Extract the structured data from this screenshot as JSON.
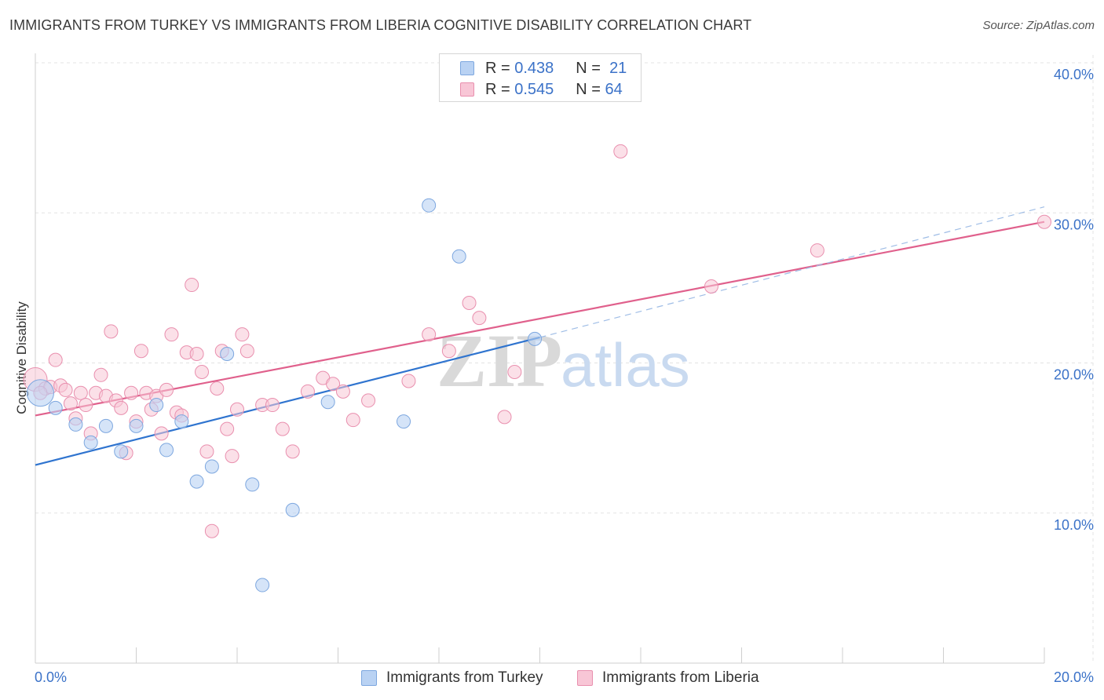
{
  "title": "IMMIGRANTS FROM TURKEY VS IMMIGRANTS FROM LIBERIA COGNITIVE DISABILITY CORRELATION CHART",
  "source": "Source: ZipAtlas.com",
  "watermark": {
    "zip": "ZIP",
    "atlas": "atlas"
  },
  "legend": {
    "rows": [
      {
        "r_label": "R =",
        "r_value": "0.438",
        "n_label": "N =",
        "n_value": "21"
      },
      {
        "r_label": "R =",
        "r_value": "0.545",
        "n_label": "N =",
        "n_value": "64"
      }
    ]
  },
  "bottom_legend": {
    "turkey": "Immigrants from Turkey",
    "liberia": "Immigrants from Liberia"
  },
  "colors": {
    "turkey_fill": "#b9d2f3",
    "turkey_stroke": "#7da7df",
    "turkey_line": "#2f74cf",
    "liberia_fill": "#f8c6d6",
    "liberia_stroke": "#e98fae",
    "liberia_line": "#e0608c",
    "tick_label": "#3b72c8",
    "grid": "#e3e3e3"
  },
  "chart_data": {
    "type": "scatter",
    "ylabel": "Cognitive Disability",
    "xlabel": "",
    "xlim": [
      0,
      20
    ],
    "ylim": [
      0,
      40
    ],
    "x_tick_labels": [
      "0.0%",
      "20.0%"
    ],
    "y_ticks": [
      10,
      20,
      30,
      40
    ],
    "y_tick_labels": [
      "10.0%",
      "20.0%",
      "30.0%",
      "40.0%"
    ],
    "grid": true,
    "legend_position": "top-center",
    "series": [
      {
        "name": "Immigrants from Turkey",
        "points": [
          [
            0.1,
            18.0
          ],
          [
            0.4,
            17.0
          ],
          [
            0.8,
            15.9
          ],
          [
            1.1,
            14.7
          ],
          [
            1.4,
            15.8
          ],
          [
            1.7,
            14.1
          ],
          [
            2.0,
            15.8
          ],
          [
            2.4,
            17.2
          ],
          [
            2.6,
            14.2
          ],
          [
            2.9,
            16.1
          ],
          [
            3.2,
            12.1
          ],
          [
            3.5,
            13.1
          ],
          [
            3.8,
            20.6
          ],
          [
            4.3,
            11.9
          ],
          [
            4.5,
            5.2
          ],
          [
            5.1,
            10.2
          ],
          [
            5.8,
            17.4
          ],
          [
            7.3,
            16.1
          ],
          [
            7.8,
            30.5
          ],
          [
            8.4,
            27.1
          ],
          [
            9.9,
            21.6
          ]
        ],
        "trend": {
          "x": [
            0,
            10
          ],
          "y": [
            13.2,
            21.7
          ],
          "dashed_extension_to": [
            20,
            30.4
          ]
        }
      },
      {
        "name": "Immigrants from Liberia",
        "points": [
          [
            0.0,
            18.9
          ],
          [
            0.2,
            18.3
          ],
          [
            0.3,
            18.4
          ],
          [
            0.4,
            20.2
          ],
          [
            0.5,
            18.5
          ],
          [
            0.6,
            18.2
          ],
          [
            0.7,
            17.3
          ],
          [
            0.8,
            16.3
          ],
          [
            0.9,
            18.0
          ],
          [
            1.0,
            17.2
          ],
          [
            1.1,
            15.3
          ],
          [
            1.2,
            18.0
          ],
          [
            1.3,
            19.2
          ],
          [
            1.4,
            17.8
          ],
          [
            1.5,
            22.1
          ],
          [
            1.6,
            17.5
          ],
          [
            1.7,
            17.0
          ],
          [
            1.8,
            14.0
          ],
          [
            1.9,
            18.0
          ],
          [
            2.0,
            16.1
          ],
          [
            2.1,
            20.8
          ],
          [
            2.2,
            18.0
          ],
          [
            2.3,
            16.9
          ],
          [
            2.4,
            17.8
          ],
          [
            2.5,
            15.3
          ],
          [
            2.6,
            18.2
          ],
          [
            2.7,
            21.9
          ],
          [
            2.8,
            16.7
          ],
          [
            2.9,
            16.5
          ],
          [
            3.0,
            20.7
          ],
          [
            3.1,
            25.2
          ],
          [
            3.2,
            20.6
          ],
          [
            3.3,
            19.4
          ],
          [
            3.4,
            14.1
          ],
          [
            3.5,
            8.8
          ],
          [
            3.6,
            18.3
          ],
          [
            3.7,
            20.8
          ],
          [
            3.8,
            15.6
          ],
          [
            3.9,
            13.8
          ],
          [
            4.0,
            16.9
          ],
          [
            4.1,
            21.9
          ],
          [
            4.2,
            20.8
          ],
          [
            4.5,
            17.2
          ],
          [
            4.7,
            17.2
          ],
          [
            4.9,
            15.6
          ],
          [
            5.1,
            14.1
          ],
          [
            5.4,
            18.1
          ],
          [
            5.7,
            19.0
          ],
          [
            5.9,
            18.6
          ],
          [
            6.1,
            18.1
          ],
          [
            6.3,
            16.2
          ],
          [
            6.6,
            17.5
          ],
          [
            7.4,
            18.8
          ],
          [
            7.8,
            21.9
          ],
          [
            8.2,
            20.8
          ],
          [
            8.6,
            24.0
          ],
          [
            8.8,
            23.0
          ],
          [
            9.3,
            16.4
          ],
          [
            9.5,
            19.4
          ],
          [
            11.6,
            34.1
          ],
          [
            13.4,
            25.1
          ],
          [
            15.5,
            27.5
          ],
          [
            20.0,
            29.4
          ],
          [
            0.1,
            18.0
          ]
        ],
        "trend": {
          "x": [
            0,
            20
          ],
          "y": [
            16.5,
            29.4
          ]
        }
      }
    ]
  }
}
